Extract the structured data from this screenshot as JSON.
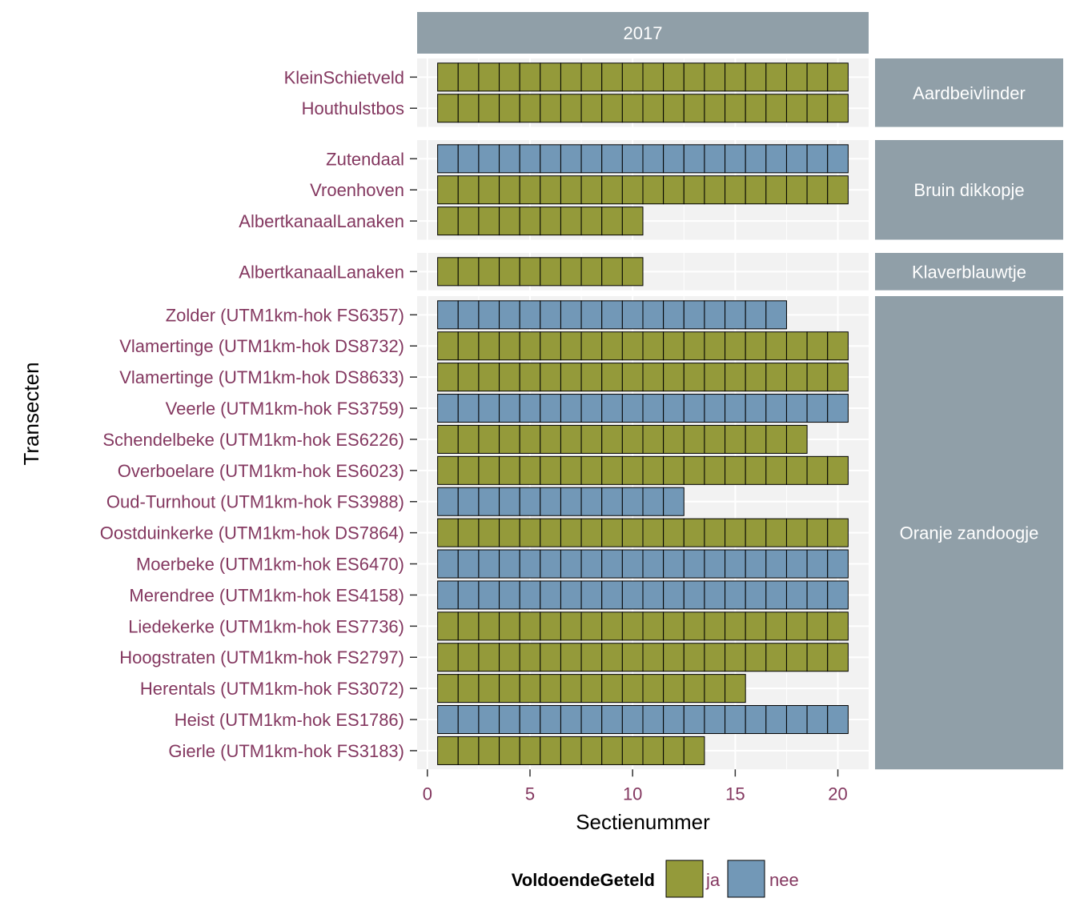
{
  "chart_data": {
    "type": "bar",
    "subtype": "stacked tile bar chart (each section is one tile)",
    "facet_column": "2017",
    "xlabel": "Sectienummer",
    "ylabel": "Transecten",
    "xlim": [
      -0.5,
      21.5
    ],
    "x_ticks": [
      0,
      5,
      10,
      15,
      20
    ],
    "grid": true,
    "legend": {
      "title": "VoldoendeGeteld",
      "position": "bottom",
      "items": [
        {
          "key": "ja",
          "label": "ja",
          "color": "#949A3A"
        },
        {
          "key": "nee",
          "label": "nee",
          "color": "#7298B7"
        }
      ]
    },
    "colors": {
      "strip": "#909FA8",
      "panel": "#F2F2F2",
      "grid": "#FFFFFF",
      "tile_border": "#000000",
      "tick_text": "#843860"
    },
    "facets": [
      {
        "name": "Aardbeivlinder",
        "rows": [
          {
            "transect": "KleinSchietveld",
            "sections": 20,
            "voldoende": "ja"
          },
          {
            "transect": "Houthulstbos",
            "sections": 20,
            "voldoende": "ja"
          }
        ]
      },
      {
        "name": "Bruin dikkopje",
        "rows": [
          {
            "transect": "Zutendaal",
            "sections": 20,
            "voldoende": "nee"
          },
          {
            "transect": "Vroenhoven",
            "sections": 20,
            "voldoende": "ja"
          },
          {
            "transect": "AlbertkanaalLanaken",
            "sections": 10,
            "voldoende": "ja"
          }
        ]
      },
      {
        "name": "Klaverblauwtje",
        "rows": [
          {
            "transect": "AlbertkanaalLanaken",
            "sections": 10,
            "voldoende": "ja"
          }
        ]
      },
      {
        "name": "Oranje zandoogje",
        "rows": [
          {
            "transect": "Zolder (UTM1km-hok FS6357)",
            "sections": 17,
            "voldoende": "nee"
          },
          {
            "transect": "Vlamertinge (UTM1km-hok DS8732)",
            "sections": 20,
            "voldoende": "ja"
          },
          {
            "transect": "Vlamertinge (UTM1km-hok DS8633)",
            "sections": 20,
            "voldoende": "ja"
          },
          {
            "transect": "Veerle (UTM1km-hok FS3759)",
            "sections": 20,
            "voldoende": "nee"
          },
          {
            "transect": "Schendelbeke (UTM1km-hok ES6226)",
            "sections": 18,
            "voldoende": "ja"
          },
          {
            "transect": "Overboelare (UTM1km-hok ES6023)",
            "sections": 20,
            "voldoende": "ja"
          },
          {
            "transect": "Oud-Turnhout (UTM1km-hok FS3988)",
            "sections": 12,
            "voldoende": "nee"
          },
          {
            "transect": "Oostduinkerke (UTM1km-hok DS7864)",
            "sections": 20,
            "voldoende": "ja"
          },
          {
            "transect": "Moerbeke (UTM1km-hok ES6470)",
            "sections": 20,
            "voldoende": "nee"
          },
          {
            "transect": "Merendree (UTM1km-hok ES4158)",
            "sections": 20,
            "voldoende": "nee"
          },
          {
            "transect": "Liedekerke (UTM1km-hok ES7736)",
            "sections": 20,
            "voldoende": "ja"
          },
          {
            "transect": "Hoogstraten (UTM1km-hok FS2797)",
            "sections": 20,
            "voldoende": "ja"
          },
          {
            "transect": "Herentals (UTM1km-hok FS3072)",
            "sections": 15,
            "voldoende": "ja"
          },
          {
            "transect": "Heist (UTM1km-hok ES1786)",
            "sections": 20,
            "voldoende": "nee"
          },
          {
            "transect": "Gierle (UTM1km-hok FS3183)",
            "sections": 13,
            "voldoende": "ja"
          }
        ]
      }
    ]
  }
}
